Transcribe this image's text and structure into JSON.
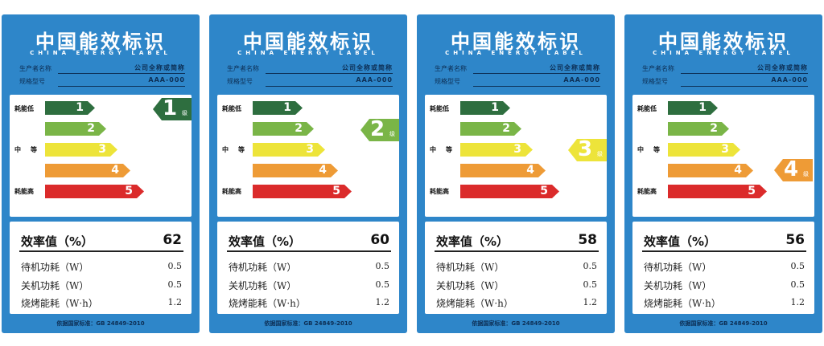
{
  "labels": [
    {
      "title": "中国能效标识",
      "subtitle": "CHINA ENERGY LABEL",
      "manufacturer_label": "生产者名称",
      "manufacturer_value": "公司全称或简称",
      "model_label": "规格型号",
      "model_value": "AAA-000",
      "side_low": "耗能低",
      "side_mid": "中等",
      "side_high": "耗能高",
      "bars": [
        "1",
        "2",
        "3",
        "4",
        "5"
      ],
      "grade": "1",
      "grade_unit": "级",
      "grade_color": "#2e6e3f",
      "efficiency_label": "效率值（%）",
      "efficiency_value": "62",
      "stats": [
        {
          "label": "待机功耗（W）",
          "value": "0.5"
        },
        {
          "label": "关机功耗（W）",
          "value": "0.5"
        },
        {
          "label": "烧烤能耗（W·h）",
          "value": "1.2"
        }
      ],
      "standard": "依据国家标准：GB 24849-2010"
    },
    {
      "title": "中国能效标识",
      "subtitle": "CHINA ENERGY LABEL",
      "manufacturer_label": "生产者名称",
      "manufacturer_value": "公司全称或简称",
      "model_label": "规格型号",
      "model_value": "AAA-000",
      "side_low": "耗能低",
      "side_mid": "中等",
      "side_high": "耗能高",
      "bars": [
        "1",
        "2",
        "3",
        "4",
        "5"
      ],
      "grade": "2",
      "grade_unit": "级",
      "grade_color": "#7ab547",
      "efficiency_label": "效率值（%）",
      "efficiency_value": "60",
      "stats": [
        {
          "label": "待机功耗（W）",
          "value": "0.5"
        },
        {
          "label": "关机功耗（W）",
          "value": "0.5"
        },
        {
          "label": "烧烤能耗（W·h）",
          "value": "1.2"
        }
      ],
      "standard": "依据国家标准：GB 24849-2010"
    },
    {
      "title": "中国能效标识",
      "subtitle": "CHINA ENERGY LABEL",
      "manufacturer_label": "生产者名称",
      "manufacturer_value": "公司全称或简称",
      "model_label": "规格型号",
      "model_value": "AAA-000",
      "side_low": "耗能低",
      "side_mid": "中等",
      "side_high": "耗能高",
      "bars": [
        "1",
        "2",
        "3",
        "4",
        "5"
      ],
      "grade": "3",
      "grade_unit": "级",
      "grade_color": "#ede43a",
      "efficiency_label": "效率值（%）",
      "efficiency_value": "58",
      "stats": [
        {
          "label": "待机功耗（W）",
          "value": "0.5"
        },
        {
          "label": "关机功耗（W）",
          "value": "0.5"
        },
        {
          "label": "烧烤能耗（W·h）",
          "value": "1.2"
        }
      ],
      "standard": "依据国家标准：GB 24849-2010"
    },
    {
      "title": "中国能效标识",
      "subtitle": "CHINA ENERGY LABEL",
      "manufacturer_label": "生产者名称",
      "manufacturer_value": "公司全称或简称",
      "model_label": "规格型号",
      "model_value": "AAA-000",
      "side_low": "耗能低",
      "side_mid": "中等",
      "side_high": "耗能高",
      "bars": [
        "1",
        "2",
        "3",
        "4",
        "5"
      ],
      "grade": "4",
      "grade_unit": "级",
      "grade_color": "#ee9b36",
      "efficiency_label": "效率值（%）",
      "efficiency_value": "56",
      "stats": [
        {
          "label": "待机功耗（W）",
          "value": "0.5"
        },
        {
          "label": "关机功耗（W）",
          "value": "0.5"
        },
        {
          "label": "烧烤能耗（W·h）",
          "value": "1.2"
        }
      ],
      "standard": "依据国家标准：GB 24849-2010"
    }
  ]
}
